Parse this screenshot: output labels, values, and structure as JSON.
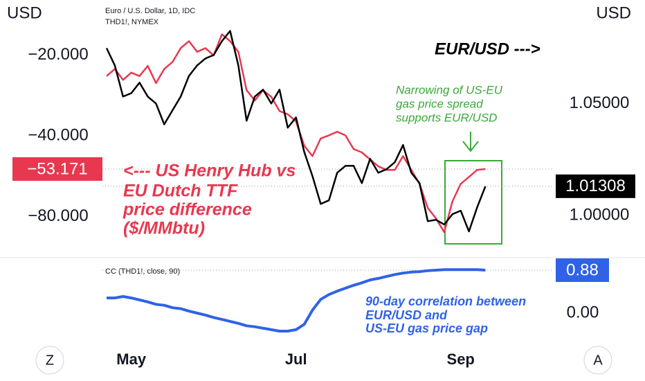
{
  "chart_data": [
    {
      "type": "line",
      "title": "Euro / U.S. Dollar, 1D, IDC",
      "subtitle": "THD1!, NYMEX",
      "y_label": "USD",
      "y2_label": "USD",
      "categories": [
        null,
        null,
        null,
        "May",
        null,
        null,
        null,
        null,
        null,
        null,
        null,
        null,
        null,
        null,
        null,
        null,
        null,
        null,
        null,
        null,
        null,
        null,
        null,
        "Jul",
        null,
        null,
        null,
        null,
        null,
        null,
        null,
        null,
        null,
        null,
        null,
        null,
        null,
        null,
        null,
        null,
        null,
        null,
        null,
        "Sep",
        null,
        null,
        null
      ],
      "log_scale": true,
      "ylim": [
        -100,
        -14
      ],
      "yticks": [
        {
          "value": -20,
          "label": "−20.000"
        },
        {
          "value": -40,
          "label": "−40.000"
        },
        {
          "value": -80,
          "label": "−80.000"
        }
      ],
      "y2lim": [
        0.988,
        1.09
      ],
      "y2ticks": [
        {
          "value": 1.05,
          "label": "1.05000"
        },
        {
          "value": 1,
          "label": "1.00000"
        }
      ],
      "series": [
        {
          "color": "#e8384f",
          "axis": "y",
          "values": [
            -23.9,
            -22.5,
            -24.7,
            -23.2,
            -23.9,
            -21.9,
            -25.4,
            -22.5,
            -21.2,
            -18.8,
            -17.7,
            -19.4,
            -18.8,
            -20,
            -16.7,
            -17.7,
            -19.4,
            -27.0,
            -29.5,
            -27.0,
            -28.6,
            -32.3,
            -33.2,
            -35.3,
            -43.5,
            -47.6,
            -40.9,
            -39.8,
            -38.6,
            -39.8,
            -44.8,
            -46.1,
            -49.0,
            -52.0,
            -53.6,
            -53.6,
            -47.6,
            -53.6,
            -60.4,
            -74.3,
            -81.3,
            -91.6,
            -70.2,
            -60.4,
            -56.9,
            -53.6,
            -53.171
          ],
          "value_labels": [
            null,
            null,
            null,
            null,
            null,
            null,
            null,
            null,
            null,
            null,
            null,
            null,
            null,
            null,
            null,
            null,
            null,
            null,
            null,
            null,
            null,
            null,
            null,
            null,
            null,
            null,
            null,
            null,
            null,
            null,
            null,
            null,
            null,
            null,
            null,
            null,
            null,
            null,
            null,
            null,
            null,
            null,
            null,
            null,
            null,
            null,
            "−53.171"
          ]
        },
        {
          "color": "#000000",
          "axis": "y2",
          "values": [
            1.0747,
            1.067,
            1.0531,
            1.0546,
            1.0593,
            1.0531,
            1.05,
            1.0407,
            1.0469,
            1.0531,
            1.0623,
            1.067,
            1.0701,
            1.0716,
            1.0778,
            1.0824,
            1.067,
            1.0423,
            1.0531,
            1.0562,
            1.05,
            1.0562,
            1.0392,
            1.0438,
            1.0284,
            1.0176,
            1.0052,
            1.0068,
            1.0191,
            1.0222,
            1.0222,
            1.0145,
            1.0253,
            1.0191,
            1.0207,
            1.0238,
            1.0315,
            1.0191,
            1.0145,
            0.9975,
            0.9981,
            0.996,
            1.0006,
            1.0022,
            0.9929,
            1.0037,
            1.01308
          ]
        }
      ],
      "annotations": [
        {
          "lines": [
            "EUR/USD --->"
          ],
          "color": "#000000"
        },
        {
          "lines": [
            "<--- US Henry Hub vs",
            "EU Dutch TTF",
            "price difference",
            "($/MMbtu)"
          ],
          "color": "#e8384f"
        },
        {
          "lines": [
            "Narrowing of US-EU",
            "gas price spread",
            "supports EUR/USD"
          ],
          "color": "#3aa83a"
        }
      ]
    },
    {
      "type": "line",
      "title": "CC (THD1!, close, 90)",
      "ylim": [
        -0.54,
        1.05
      ],
      "yticks": [
        {
          "value": 0,
          "label": "0.00"
        }
      ],
      "series": [
        {
          "color": "#2f62e6",
          "values": [
            0.31,
            0.31,
            0.34,
            0.31,
            0.27,
            0.23,
            0.18,
            0.16,
            0.11,
            0.09,
            0.04,
            0,
            -0.04,
            -0.09,
            -0.13,
            -0.17,
            -0.21,
            -0.26,
            -0.28,
            -0.31,
            -0.34,
            -0.37,
            -0.37,
            -0.34,
            -0.23,
            0.06,
            0.28,
            0.38,
            0.45,
            0.51,
            0.57,
            0.62,
            0.68,
            0.71,
            0.75,
            0.79,
            0.82,
            0.84,
            0.85,
            0.87,
            0.88,
            0.89,
            0.89,
            0.89,
            0.89,
            0.89,
            0.88
          ]
        }
      ],
      "annotations": [
        {
          "lines": [
            "90-day correlation between",
            "EUR/USD and",
            "US-EU gas price gap"
          ],
          "color": "#2f62e6"
        }
      ]
    }
  ],
  "ui": {
    "buttons": [
      "Z",
      "A"
    ]
  }
}
